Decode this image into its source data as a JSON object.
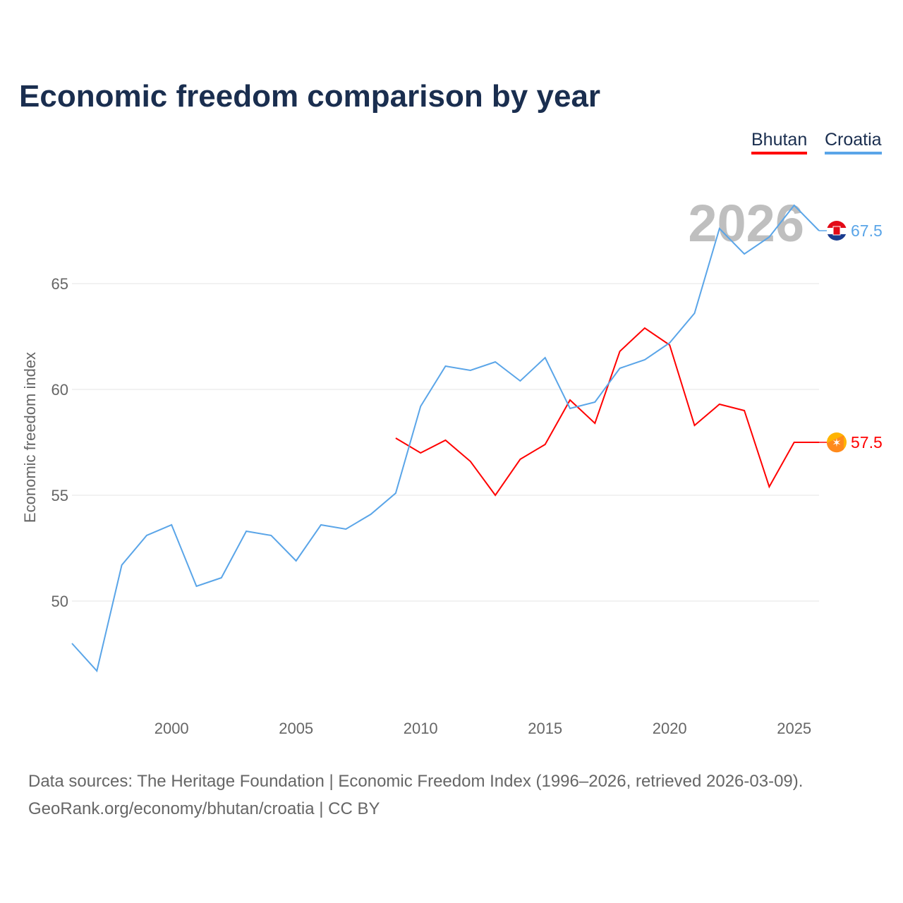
{
  "chart_data": {
    "type": "line",
    "title": "Economic freedom comparison by year",
    "xlabel": "",
    "ylabel": "Economic freedom index",
    "xlim": [
      1996,
      2026
    ],
    "ylim": [
      45,
      70
    ],
    "x_ticks": [
      2000,
      2005,
      2010,
      2015,
      2020,
      2025
    ],
    "y_ticks": [
      50,
      55,
      60,
      65
    ],
    "grid": true,
    "legend_position": "top-right",
    "year_watermark": "2026",
    "series": [
      {
        "name": "Bhutan",
        "color": "#ff0000",
        "end_label": "57.5",
        "x": [
          2009,
          2010,
          2011,
          2012,
          2013,
          2014,
          2015,
          2016,
          2017,
          2018,
          2019,
          2020,
          2021,
          2022,
          2023,
          2024,
          2025,
          2026
        ],
        "values": [
          57.7,
          57.0,
          57.6,
          56.6,
          55.0,
          56.7,
          57.4,
          59.5,
          58.4,
          61.8,
          62.9,
          62.1,
          58.3,
          59.3,
          59.0,
          55.4,
          57.5,
          57.5
        ]
      },
      {
        "name": "Croatia",
        "color": "#5aa5e8",
        "end_label": "67.5",
        "x": [
          1996,
          1997,
          1998,
          1999,
          2000,
          2001,
          2002,
          2003,
          2004,
          2005,
          2006,
          2007,
          2008,
          2009,
          2010,
          2011,
          2012,
          2013,
          2014,
          2015,
          2016,
          2017,
          2018,
          2019,
          2020,
          2021,
          2022,
          2023,
          2024,
          2025,
          2026
        ],
        "values": [
          48.0,
          46.7,
          51.7,
          53.1,
          53.6,
          50.7,
          51.1,
          53.3,
          53.1,
          51.9,
          53.6,
          53.4,
          54.1,
          55.1,
          59.2,
          61.1,
          60.9,
          61.3,
          60.4,
          61.5,
          59.1,
          59.4,
          61.0,
          61.4,
          62.2,
          63.6,
          67.6,
          66.4,
          67.2,
          68.7,
          67.5
        ]
      }
    ]
  },
  "footer": {
    "line1": "Data sources: The Heritage Foundation | Economic Freedom Index (1996–2026, retrieved 2026-03-09).",
    "line2": "GeoRank.org/economy/bhutan/croatia | CC BY"
  }
}
